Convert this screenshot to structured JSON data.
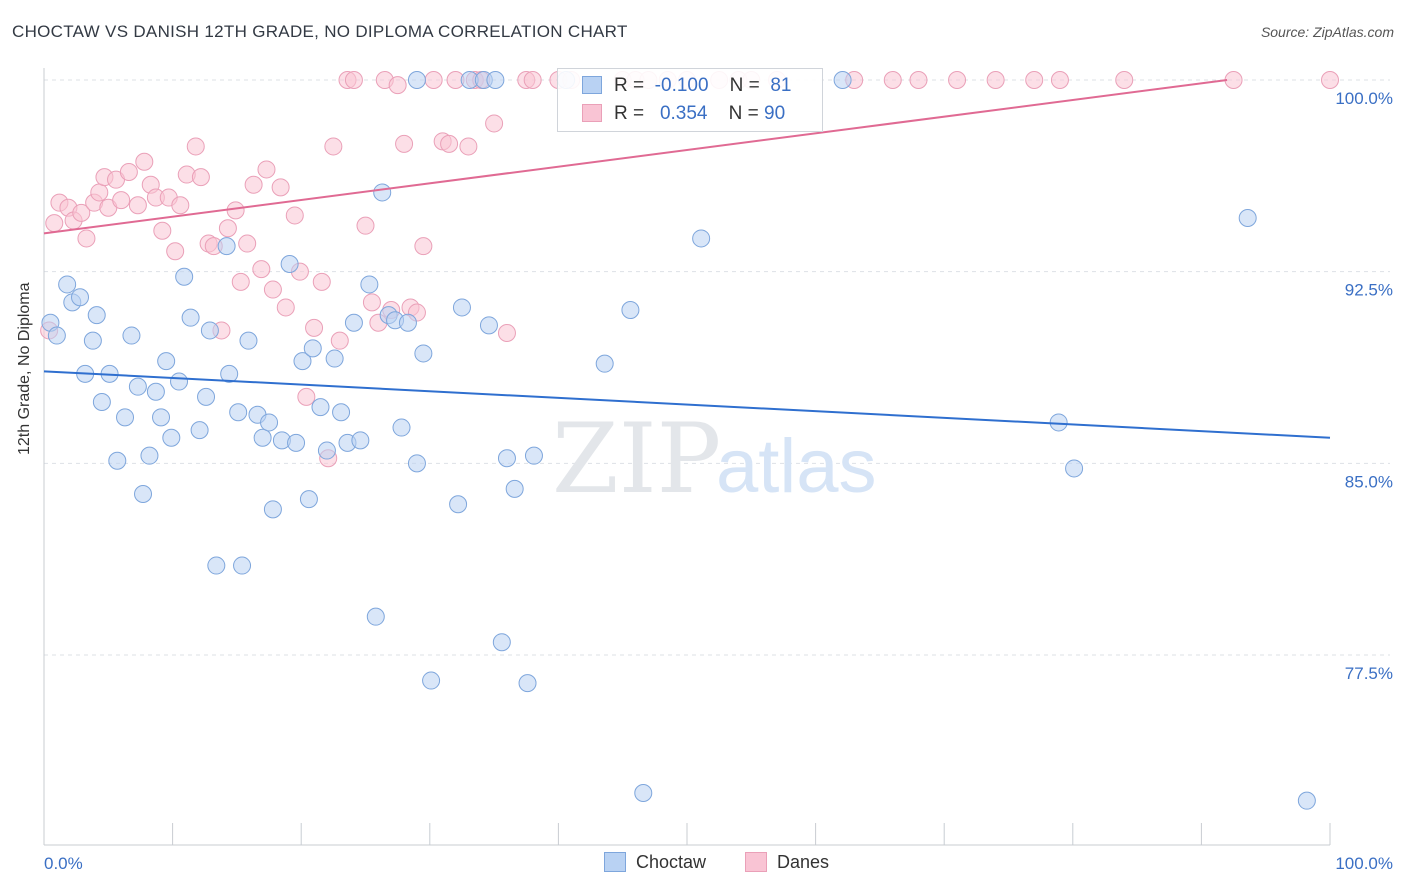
{
  "header": {
    "title": "CHOCTAW VS DANISH 12TH GRADE, NO DIPLOMA CORRELATION CHART",
    "source": "Source: ZipAtlas.com"
  },
  "watermark": {
    "zip": "ZIP",
    "atlas": "atlas"
  },
  "legend": {
    "rows": [
      {
        "r_label": "R =",
        "r_value": "-0.100",
        "n_label": "N =",
        "n_value": "81"
      },
      {
        "r_label": "R =",
        "r_value": "0.354",
        "n_label": "N =",
        "n_value": "90"
      }
    ]
  },
  "bottom_legend": {
    "choctaw": "Choctaw",
    "danes": "Danes"
  },
  "colors": {
    "choctaw_fill": "#b9d2f3",
    "choctaw_stroke": "#7ea6dc",
    "choctaw_line": "#2f6fcf",
    "danes_fill": "#f9c4d4",
    "danes_stroke": "#eaa0b8",
    "danes_line": "#e06a93",
    "tick_label": "#3a6fc4"
  },
  "chart_data": {
    "type": "scatter",
    "title": "CHOCTAW VS DANISH 12TH GRADE, NO DIPLOMA CORRELATION CHART",
    "xlabel": "",
    "ylabel": "12th Grade, No Diploma",
    "xlim": [
      0,
      100
    ],
    "ylim": [
      71.5,
      100.5
    ],
    "x_tick_labels": [
      "0.0%",
      "100.0%"
    ],
    "y_ticks": [
      77.5,
      85.0,
      92.5,
      100.0
    ],
    "y_tick_labels": [
      "77.5%",
      "85.0%",
      "92.5%",
      "100.0%"
    ],
    "grid": true,
    "legend_position": "top-center",
    "series": [
      {
        "name": "Choctaw",
        "r": -0.1,
        "n": 81,
        "trend": {
          "x": [
            0,
            100
          ],
          "y": [
            88.6,
            86.0
          ]
        },
        "points": [
          [
            0.5,
            90.5
          ],
          [
            1,
            90.0
          ],
          [
            1.8,
            92.0
          ],
          [
            2.2,
            91.3
          ],
          [
            2.8,
            91.5
          ],
          [
            3.2,
            88.5
          ],
          [
            3.8,
            89.8
          ],
          [
            4.1,
            90.8
          ],
          [
            4.5,
            87.4
          ],
          [
            5.1,
            88.5
          ],
          [
            5.7,
            85.1
          ],
          [
            6.3,
            86.8
          ],
          [
            6.8,
            90.0
          ],
          [
            7.3,
            88.0
          ],
          [
            7.7,
            83.8
          ],
          [
            8.2,
            85.3
          ],
          [
            8.7,
            87.8
          ],
          [
            9.1,
            86.8
          ],
          [
            9.5,
            89.0
          ],
          [
            9.9,
            86.0
          ],
          [
            10.5,
            88.2
          ],
          [
            10.9,
            92.3
          ],
          [
            11.4,
            90.7
          ],
          [
            12.1,
            86.3
          ],
          [
            12.6,
            87.6
          ],
          [
            12.9,
            90.2
          ],
          [
            13.4,
            81.0
          ],
          [
            14.2,
            93.5
          ],
          [
            14.4,
            88.5
          ],
          [
            15.1,
            87.0
          ],
          [
            15.4,
            81.0
          ],
          [
            15.9,
            89.8
          ],
          [
            16.6,
            86.9
          ],
          [
            17.0,
            86.0
          ],
          [
            17.5,
            86.6
          ],
          [
            17.8,
            83.2
          ],
          [
            18.5,
            85.9
          ],
          [
            19.1,
            92.8
          ],
          [
            19.6,
            85.8
          ],
          [
            20.1,
            89.0
          ],
          [
            20.6,
            83.6
          ],
          [
            20.9,
            89.5
          ],
          [
            21.5,
            87.2
          ],
          [
            22.0,
            85.5
          ],
          [
            22.6,
            89.1
          ],
          [
            23.1,
            87.0
          ],
          [
            23.6,
            85.8
          ],
          [
            24.1,
            90.5
          ],
          [
            24.6,
            85.9
          ],
          [
            25.3,
            92.0
          ],
          [
            25.8,
            79.0
          ],
          [
            26.3,
            95.6
          ],
          [
            26.8,
            90.8
          ],
          [
            27.3,
            90.6
          ],
          [
            27.8,
            86.4
          ],
          [
            28.3,
            90.5
          ],
          [
            29.0,
            85.0
          ],
          [
            29.5,
            89.3
          ],
          [
            30.1,
            76.5
          ],
          [
            32.2,
            83.4
          ],
          [
            32.5,
            91.1
          ],
          [
            33.1,
            100
          ],
          [
            34.2,
            100
          ],
          [
            34.6,
            90.4
          ],
          [
            35.1,
            100
          ],
          [
            35.6,
            78.0
          ],
          [
            36.0,
            85.2
          ],
          [
            36.6,
            84.0
          ],
          [
            37.6,
            76.4
          ],
          [
            38.1,
            85.3
          ],
          [
            40.6,
            100
          ],
          [
            43.6,
            88.9
          ],
          [
            45.6,
            91.0
          ],
          [
            46.6,
            72.1
          ],
          [
            51.1,
            93.8
          ],
          [
            62.1,
            100
          ],
          [
            78.9,
            86.6
          ],
          [
            80.1,
            84.8
          ],
          [
            93.6,
            94.6
          ],
          [
            98.2,
            71.8
          ],
          [
            29.0,
            100
          ]
        ]
      },
      {
        "name": "Danes",
        "r": 0.354,
        "n": 90,
        "trend": {
          "x": [
            0,
            92
          ],
          "y": [
            94.0,
            100.0
          ]
        },
        "points": [
          [
            0.4,
            90.2
          ],
          [
            0.8,
            94.4
          ],
          [
            1.2,
            95.2
          ],
          [
            1.9,
            95.0
          ],
          [
            2.3,
            94.5
          ],
          [
            2.9,
            94.8
          ],
          [
            3.3,
            93.8
          ],
          [
            3.9,
            95.2
          ],
          [
            4.3,
            95.6
          ],
          [
            4.7,
            96.2
          ],
          [
            5.0,
            95.0
          ],
          [
            5.6,
            96.1
          ],
          [
            6.0,
            95.3
          ],
          [
            6.6,
            96.4
          ],
          [
            7.3,
            95.1
          ],
          [
            7.8,
            96.8
          ],
          [
            8.3,
            95.9
          ],
          [
            8.7,
            95.4
          ],
          [
            9.2,
            94.1
          ],
          [
            9.7,
            95.4
          ],
          [
            10.2,
            93.3
          ],
          [
            10.6,
            95.1
          ],
          [
            11.1,
            96.3
          ],
          [
            11.8,
            97.4
          ],
          [
            12.2,
            96.2
          ],
          [
            12.8,
            93.6
          ],
          [
            13.2,
            93.5
          ],
          [
            13.8,
            90.2
          ],
          [
            14.3,
            94.2
          ],
          [
            14.9,
            94.9
          ],
          [
            15.3,
            92.1
          ],
          [
            15.8,
            93.6
          ],
          [
            16.3,
            95.9
          ],
          [
            16.9,
            92.6
          ],
          [
            17.3,
            96.5
          ],
          [
            17.8,
            91.8
          ],
          [
            18.4,
            95.8
          ],
          [
            18.8,
            91.1
          ],
          [
            19.5,
            94.7
          ],
          [
            19.9,
            92.5
          ],
          [
            20.4,
            87.6
          ],
          [
            21.0,
            90.3
          ],
          [
            21.6,
            92.1
          ],
          [
            22.1,
            85.2
          ],
          [
            22.5,
            97.4
          ],
          [
            23.0,
            89.8
          ],
          [
            23.6,
            100
          ],
          [
            24.1,
            100
          ],
          [
            25.0,
            94.3
          ],
          [
            25.5,
            91.3
          ],
          [
            26.0,
            90.5
          ],
          [
            26.5,
            100
          ],
          [
            27.0,
            91.0
          ],
          [
            27.5,
            99.8
          ],
          [
            28.0,
            97.5
          ],
          [
            28.5,
            91.1
          ],
          [
            29.0,
            90.9
          ],
          [
            29.5,
            93.5
          ],
          [
            30.3,
            100
          ],
          [
            31.0,
            97.6
          ],
          [
            31.5,
            97.5
          ],
          [
            32.0,
            100
          ],
          [
            33.0,
            97.4
          ],
          [
            33.5,
            100
          ],
          [
            34.0,
            100
          ],
          [
            35.0,
            98.3
          ],
          [
            36.0,
            90.1
          ],
          [
            37.5,
            100
          ],
          [
            38.0,
            100
          ],
          [
            40.0,
            100
          ],
          [
            41.0,
            100
          ],
          [
            45.0,
            100
          ],
          [
            46.0,
            100
          ],
          [
            47.0,
            100
          ],
          [
            48.5,
            100
          ],
          [
            50.0,
            100
          ],
          [
            52.5,
            100
          ],
          [
            54.0,
            100
          ],
          [
            55.0,
            100
          ],
          [
            57.0,
            100
          ],
          [
            63.0,
            100
          ],
          [
            66.0,
            100
          ],
          [
            68.0,
            100
          ],
          [
            71.0,
            100
          ],
          [
            74.0,
            100
          ],
          [
            77.0,
            100
          ],
          [
            79.0,
            100
          ],
          [
            84.0,
            100
          ],
          [
            92.5,
            100
          ],
          [
            100.0,
            100
          ]
        ]
      }
    ]
  }
}
